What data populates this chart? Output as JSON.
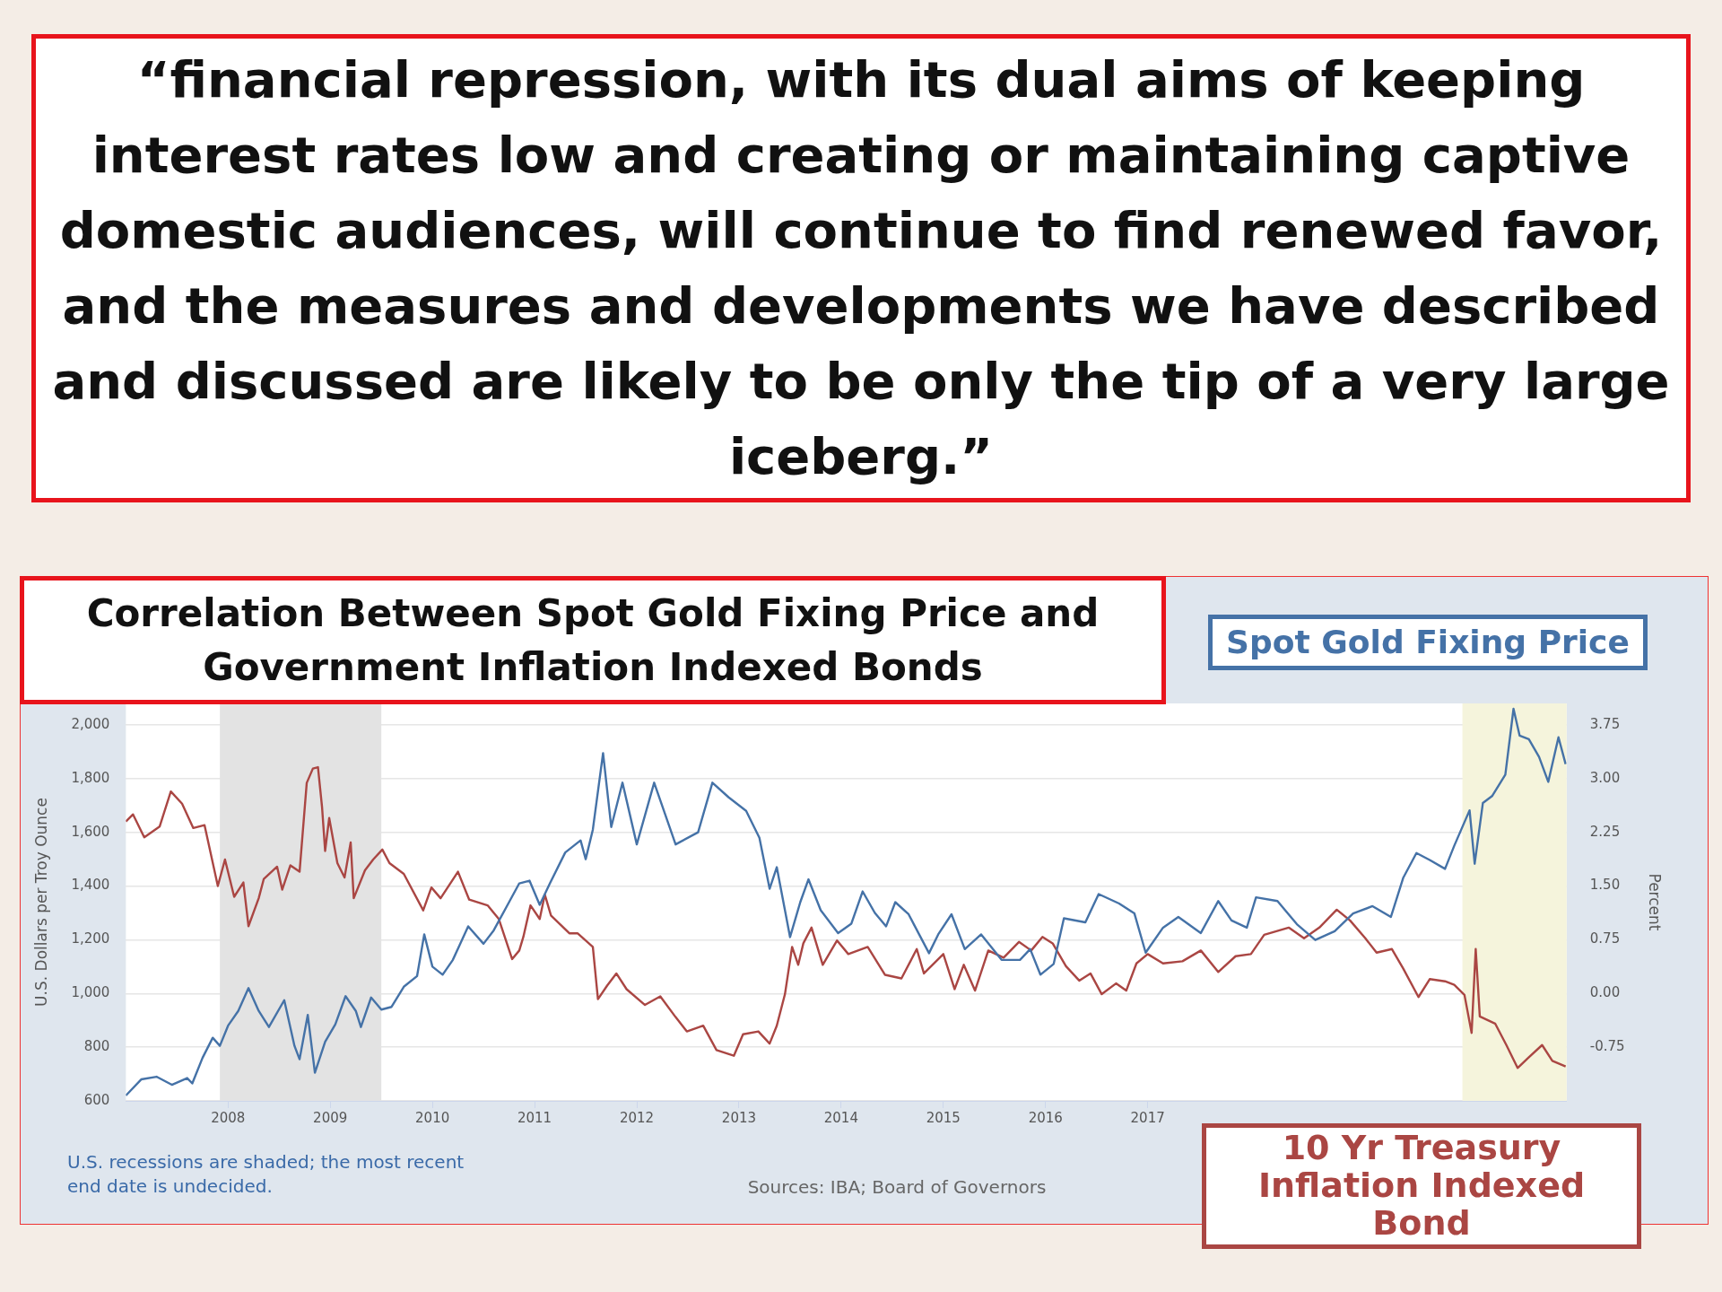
{
  "chart_data": {
    "type": "line",
    "title": "“financial repression, with its dual aims of keeping interest rates low and creating or maintaining captive domestic audiences, will continue to find renewed favor, and the measures and developments we have described and discussed are likely to be only the tip of a very large iceberg.”",
    "subtitle": "Correlation Between Spot Gold Fixing Price and Government Inflation Indexed Bonds",
    "ylabel": "U.S. Dollars per Troy Ounce",
    "y2label": "Percent",
    "annotations": [
      "U.S. recessions are shaded; the most recent end date is undecided.",
      "Sources: IBA; Board of Governors"
    ],
    "xlim": [
      2007.0,
      2021.1
    ],
    "xticks": [
      2008,
      2009,
      2010,
      2011,
      2012,
      2013,
      2014,
      2015,
      2016,
      2017
    ],
    "ylim": [
      600,
      2080
    ],
    "yticks": [
      {
        "value": 600,
        "label": "600"
      },
      {
        "value": 800,
        "label": "800"
      },
      {
        "value": 1000,
        "label": "1,000"
      },
      {
        "value": 1200,
        "label": "1,200"
      },
      {
        "value": 1400,
        "label": "1,400"
      },
      {
        "value": 1600,
        "label": "1,600"
      },
      {
        "value": 1800,
        "label": "1,800"
      },
      {
        "value": 2000,
        "label": "2,000"
      }
    ],
    "y2lim": [
      -1.5,
      4.05
    ],
    "y2ticks": [
      {
        "value": -0.75,
        "label": "-0.75"
      },
      {
        "value": 0,
        "label": "0.00"
      },
      {
        "value": 0.75,
        "label": "0.75"
      },
      {
        "value": 1.5,
        "label": "1.50"
      },
      {
        "value": 2.25,
        "label": "2.25"
      },
      {
        "value": 3,
        "label": "3.00"
      },
      {
        "value": 3.75,
        "label": "3.75"
      }
    ],
    "grid": "y",
    "bands": [
      {
        "axis": "x",
        "from": 2007.92,
        "to": 2009.5,
        "color": "#e3e3e3"
      },
      {
        "axis": "x",
        "from": 2020.08,
        "to": 2021.1,
        "color": "#f5f4dc"
      }
    ],
    "series": [
      {
        "name": "Spot Gold Fixing Price",
        "color": "#4572a7",
        "x": [
          2007.0,
          2007.15,
          2007.3,
          2007.45,
          2007.6,
          2007.65,
          2007.75,
          2007.85,
          2007.92,
          2008.0,
          2008.1,
          2008.2,
          2008.3,
          2008.4,
          2008.55,
          2008.65,
          2008.7,
          2008.78,
          2008.85,
          2008.95,
          2009.05,
          2009.15,
          2009.25,
          2009.3,
          2009.4,
          2009.5,
          2009.6,
          2009.72,
          2009.85,
          2009.92,
          2010.0,
          2010.1,
          2010.2,
          2010.35,
          2010.5,
          2010.6,
          2010.75,
          2010.85,
          2010.95,
          2011.05,
          2011.15,
          2011.3,
          2011.45,
          2011.5,
          2011.57,
          2011.67,
          2011.75,
          2011.86,
          2012.0,
          2012.17,
          2012.38,
          2012.6,
          2012.74,
          2012.9,
          2013.07,
          2013.2,
          2013.3,
          2013.37,
          2013.5,
          2013.6,
          2013.68,
          2013.8,
          2013.97,
          2014.1,
          2014.21,
          2014.33,
          2014.44,
          2014.53,
          2014.66,
          2014.86,
          2014.95,
          2015.08,
          2015.21,
          2015.37,
          2015.57,
          2015.75,
          2015.85,
          2015.95,
          2016.08,
          2016.18,
          2016.39,
          2016.52,
          2016.72,
          2016.87,
          2016.98,
          2017.15,
          2017.3,
          2017.52,
          2017.69,
          2017.82,
          2017.97,
          2018.06,
          2018.27,
          2018.46,
          2018.64,
          2018.83,
          2019.01,
          2019.2,
          2019.38,
          2019.5,
          2019.63,
          2019.76,
          2019.91,
          2020.0,
          2020.15,
          2020.2,
          2020.28,
          2020.37,
          2020.5,
          2020.58,
          2020.64,
          2020.73,
          2020.83,
          2020.92,
          2021.02,
          2021.09
        ],
        "values": [
          620,
          680,
          690,
          660,
          685,
          665,
          760,
          835,
          805,
          880,
          935,
          1020,
          935,
          875,
          975,
          805,
          755,
          920,
          705,
          820,
          885,
          990,
          935,
          875,
          985,
          940,
          950,
          1025,
          1065,
          1220,
          1100,
          1070,
          1125,
          1250,
          1185,
          1235,
          1340,
          1410,
          1420,
          1330,
          1410,
          1525,
          1570,
          1500,
          1610,
          1895,
          1620,
          1785,
          1555,
          1785,
          1555,
          1600,
          1785,
          1730,
          1680,
          1580,
          1390,
          1470,
          1210,
          1340,
          1425,
          1310,
          1225,
          1260,
          1380,
          1300,
          1250,
          1340,
          1295,
          1150,
          1220,
          1295,
          1165,
          1220,
          1125,
          1125,
          1165,
          1070,
          1110,
          1280,
          1265,
          1370,
          1335,
          1298,
          1152,
          1245,
          1285,
          1225,
          1344,
          1272,
          1245,
          1358,
          1344,
          1258,
          1199,
          1232,
          1298,
          1325,
          1285,
          1430,
          1523,
          1497,
          1464,
          1550,
          1682,
          1483,
          1709,
          1735,
          1815,
          2060,
          1960,
          1947,
          1881,
          1788,
          1954,
          1854
        ]
      },
      {
        "name": "10 Yr Treasury Inflation Indexed Bond",
        "color": "#aa4643",
        "axis": "y2",
        "x": [
          2007.0,
          2007.07,
          2007.18,
          2007.33,
          2007.44,
          2007.55,
          2007.66,
          2007.77,
          2007.9,
          2007.97,
          2008.06,
          2008.15,
          2008.2,
          2008.3,
          2008.35,
          2008.48,
          2008.53,
          2008.61,
          2008.7,
          2008.77,
          2008.83,
          2008.88,
          2008.92,
          2008.95,
          2008.99,
          2009.07,
          2009.14,
          2009.2,
          2009.23,
          2009.34,
          2009.42,
          2009.51,
          2009.58,
          2009.72,
          2009.91,
          2009.99,
          2010.08,
          2010.25,
          2010.36,
          2010.54,
          2010.65,
          2010.78,
          2010.85,
          2010.89,
          2010.96,
          2011.05,
          2011.1,
          2011.16,
          2011.34,
          2011.42,
          2011.57,
          2011.62,
          2011.71,
          2011.8,
          2011.9,
          2012.08,
          2012.23,
          2012.38,
          2012.49,
          2012.65,
          2012.78,
          2012.95,
          2013.04,
          2013.19,
          2013.3,
          2013.37,
          2013.45,
          2013.52,
          2013.58,
          2013.63,
          2013.71,
          2013.82,
          2013.96,
          2014.07,
          2014.26,
          2014.43,
          2014.59,
          2014.74,
          2014.81,
          2015.0,
          2015.11,
          2015.2,
          2015.31,
          2015.44,
          2015.59,
          2015.74,
          2015.86,
          2015.97,
          2016.07,
          2016.2,
          2016.33,
          2016.44,
          2016.55,
          2016.69,
          2016.79,
          2016.89,
          2017.0,
          2017.15,
          2017.34,
          2017.52,
          2017.69,
          2017.86,
          2018.01,
          2018.14,
          2018.38,
          2018.53,
          2018.68,
          2018.85,
          2018.98,
          2019.13,
          2019.24,
          2019.39,
          2019.5,
          2019.65,
          2019.76,
          2019.91,
          2020.0,
          2020.1,
          2020.17,
          2020.21,
          2020.25,
          2020.4,
          2020.51,
          2020.62,
          2020.73,
          2020.86,
          2020.96,
          2021.09
        ],
        "values": [
          2.4,
          2.5,
          2.18,
          2.33,
          2.82,
          2.65,
          2.31,
          2.35,
          1.5,
          1.87,
          1.35,
          1.55,
          0.94,
          1.33,
          1.6,
          1.77,
          1.45,
          1.79,
          1.7,
          2.94,
          3.14,
          3.16,
          2.6,
          1.99,
          2.45,
          1.82,
          1.62,
          2.11,
          1.33,
          1.72,
          1.87,
          2.01,
          1.82,
          1.67,
          1.16,
          1.48,
          1.33,
          1.7,
          1.31,
          1.23,
          1.04,
          0.48,
          0.6,
          0.79,
          1.23,
          1.04,
          1.38,
          1.09,
          0.84,
          0.84,
          0.65,
          -0.08,
          0.11,
          0.28,
          0.06,
          -0.16,
          -0.04,
          -0.33,
          -0.53,
          -0.45,
          -0.79,
          -0.87,
          -0.57,
          -0.53,
          -0.7,
          -0.45,
          -0.01,
          0.65,
          0.4,
          0.7,
          0.92,
          0.4,
          0.74,
          0.55,
          0.65,
          0.26,
          0.21,
          0.62,
          0.28,
          0.55,
          0.06,
          0.4,
          0.04,
          0.6,
          0.5,
          0.72,
          0.6,
          0.79,
          0.7,
          0.38,
          0.18,
          0.28,
          -0.01,
          0.14,
          0.04,
          0.42,
          0.55,
          0.42,
          0.45,
          0.6,
          0.3,
          0.52,
          0.55,
          0.82,
          0.92,
          0.77,
          0.92,
          1.17,
          1.02,
          0.77,
          0.57,
          0.62,
          0.35,
          -0.05,
          0.2,
          0.17,
          0.12,
          -0.02,
          -0.55,
          0.62,
          -0.32,
          -0.42,
          -0.72,
          -1.04,
          -0.89,
          -0.72,
          -0.94,
          -1.02
        ]
      }
    ]
  }
}
